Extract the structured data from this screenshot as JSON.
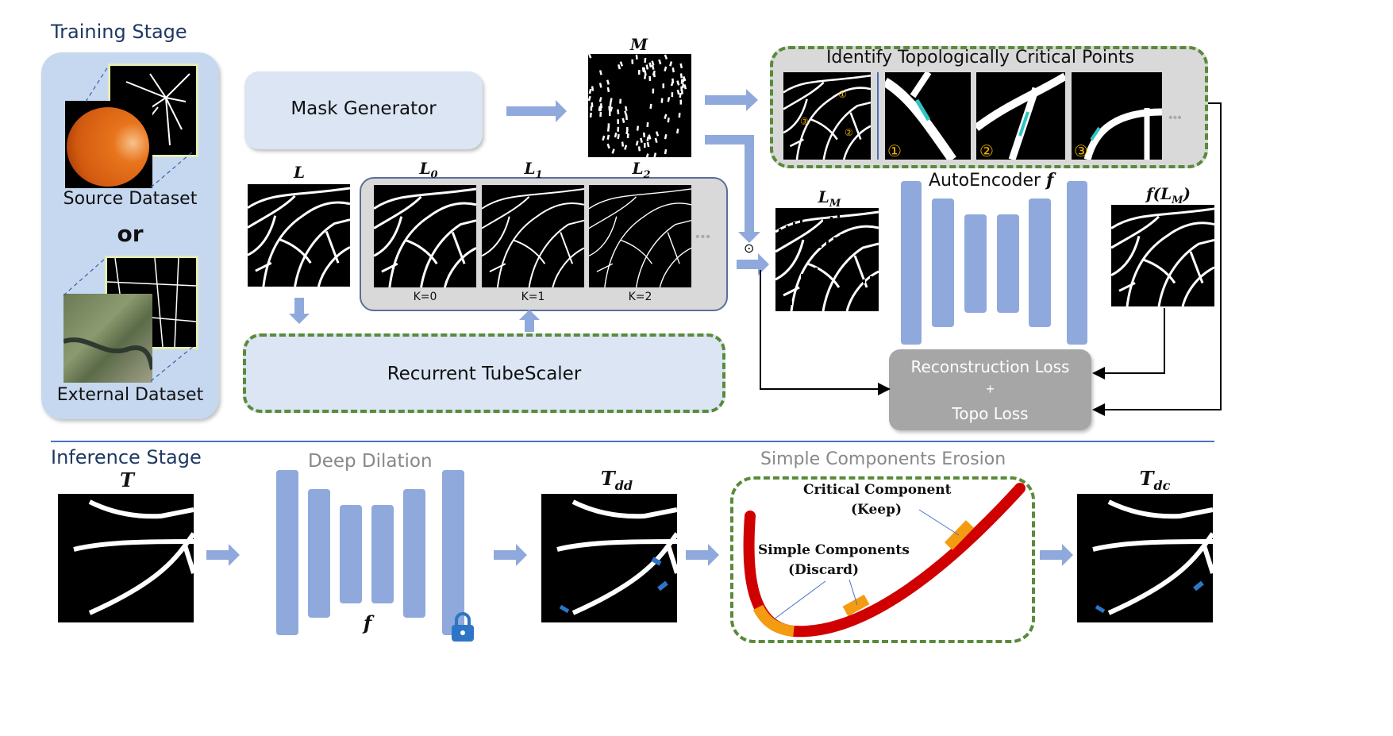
{
  "training": {
    "title": "Training Stage",
    "source_label": "Source Dataset",
    "or_label": "or",
    "external_label": "External Dataset",
    "mask_generator": "Mask Generator",
    "mask_symbol": "M",
    "label_symbol": "L",
    "scales": [
      {
        "symbol": "L",
        "sub": "0",
        "k": "K=0"
      },
      {
        "symbol": "L",
        "sub": "1",
        "k": "K=1"
      },
      {
        "symbol": "L",
        "sub": "2",
        "k": "K=2"
      }
    ],
    "tubescaler": "Recurrent TubeScaler",
    "critical_title": "Identify Topologically Critical Points",
    "critical_markers": [
      "①",
      "②",
      "③"
    ],
    "masked_symbol": "L",
    "masked_sub": "M",
    "autoencoder": "AutoEncoder",
    "autoencoder_f": "f",
    "output_symbol": "f(L",
    "output_sub": "M",
    "output_close": ")",
    "loss_line1": "Reconstruction Loss",
    "loss_plus": "+",
    "loss_line2": "Topo Loss",
    "odot": "⊙",
    "ellipsis": "•••"
  },
  "inference": {
    "title": "Inference Stage",
    "input_symbol": "T",
    "dilation_title": "Deep Dilation",
    "dilation_f": "f",
    "dd_symbol": "T",
    "dd_sub": "dd",
    "erosion_title": "Simple Components Erosion",
    "critical_component": "Critical Component",
    "keep": "(Keep)",
    "simple_components": "Simple Components",
    "discard": "(Discard)",
    "dc_symbol": "T",
    "dc_sub": "dc"
  },
  "colors": {
    "accent_blue": "#8fa9dc",
    "title_blue": "#1f3864",
    "dashed_green": "#5a8a3a",
    "component_red": "#d00000",
    "component_orange": "#f39c12",
    "loss_gray": "#a6a6a6"
  }
}
